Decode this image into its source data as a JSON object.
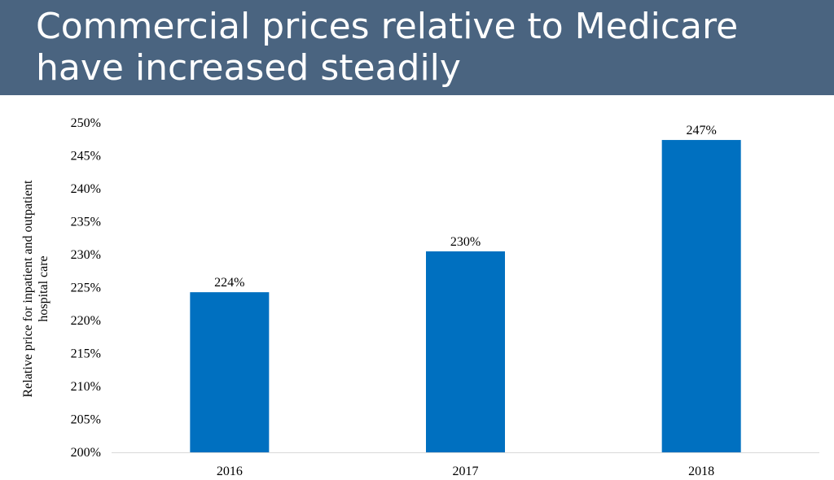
{
  "slide": {
    "title_line1": "Commercial prices relative to Medicare",
    "title_line2": "have increased steadily",
    "title_bg": "#4a6480"
  },
  "chart_data": {
    "type": "bar",
    "categories": [
      "2016",
      "2017",
      "2018"
    ],
    "series": [
      {
        "values": [
          224.3,
          230.5,
          247.4
        ],
        "labels": [
          "224%",
          "230%",
          "247%"
        ],
        "color": "#0070c0"
      }
    ],
    "ylabel_lines": [
      "Relative price for inpatient and outpatient",
      "hospital care"
    ],
    "xlabel": "",
    "ylim": [
      200,
      250
    ],
    "y_ticks": [
      "200%",
      "205%",
      "210%",
      "215%",
      "220%",
      "225%",
      "230%",
      "235%",
      "240%",
      "245%",
      "250%"
    ],
    "y_tick_values": [
      200,
      205,
      210,
      215,
      220,
      225,
      230,
      235,
      240,
      245,
      250
    ],
    "grid": false,
    "legend": "none"
  }
}
